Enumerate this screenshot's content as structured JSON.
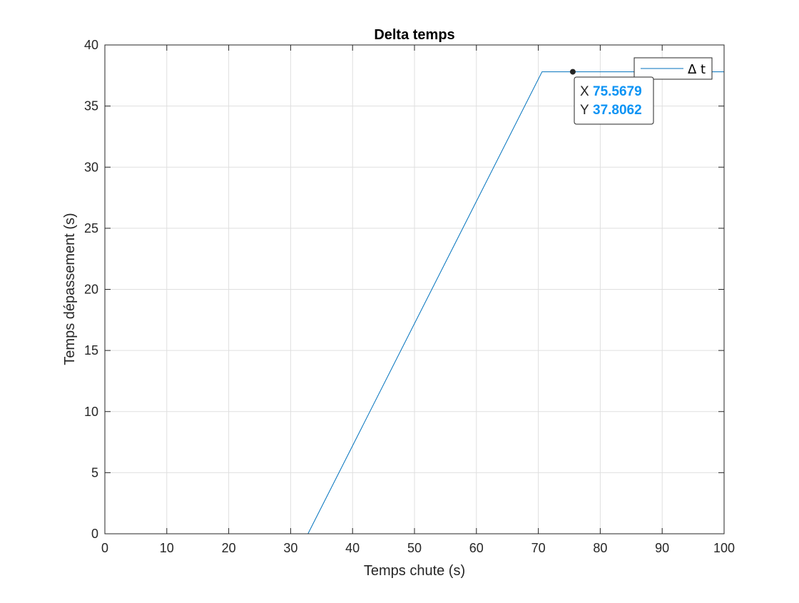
{
  "chart_data": {
    "type": "line",
    "title": "Delta temps",
    "xlabel": "Temps chute (s)",
    "ylabel": "Temps dépassement (s)",
    "xlim": [
      0,
      100
    ],
    "ylim": [
      0,
      40
    ],
    "xticks": [
      0,
      10,
      20,
      30,
      40,
      50,
      60,
      70,
      80,
      90,
      100
    ],
    "yticks": [
      0,
      5,
      10,
      15,
      20,
      25,
      30,
      35,
      40
    ],
    "grid": true,
    "legend_position": "top-right",
    "series": [
      {
        "name": "Δ t",
        "color": "#0072bd",
        "x": [
          0,
          32.8,
          70.6,
          100
        ],
        "y": [
          0,
          0,
          37.8062,
          37.8062
        ]
      }
    ],
    "datatip": {
      "x_label": "X",
      "y_label": "Y",
      "x_value": "75.5679",
      "y_value": "37.8062",
      "x": 75.5679,
      "y": 37.8062
    }
  }
}
